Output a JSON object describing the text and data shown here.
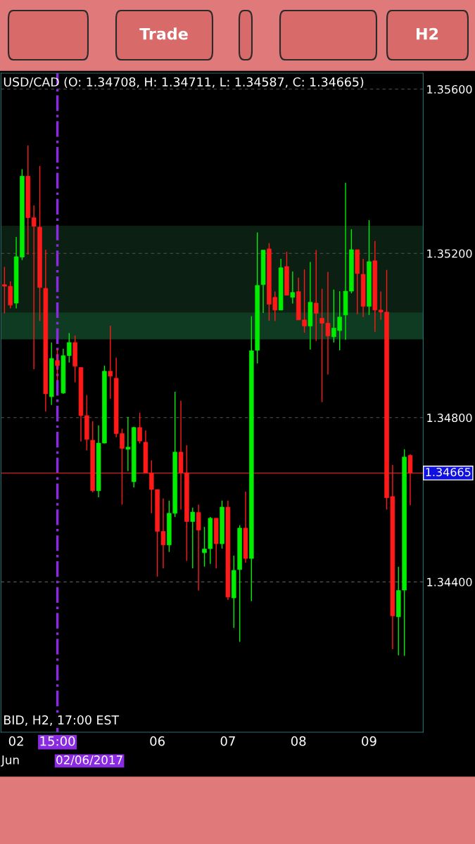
{
  "chart_data": {
    "type": "candlestick",
    "title": "USD/CAD (O: 1.34708, H: 1.34711, L: 1.34587, C: 1.34665)",
    "annotations": [
      "BID, H2, 17:00 EST",
      "Jun",
      "Trade",
      "H2"
    ],
    "categories": [
      null,
      null,
      "02",
      null,
      null,
      null,
      null,
      null,
      null,
      "15:00",
      null,
      null,
      null,
      null,
      null,
      null,
      null,
      null,
      null,
      null,
      null,
      null,
      null,
      null,
      null,
      null,
      "06",
      null,
      null,
      null,
      null,
      null,
      null,
      null,
      null,
      null,
      null,
      null,
      "07",
      null,
      null,
      null,
      null,
      null,
      null,
      null,
      null,
      null,
      null,
      null,
      "08",
      null,
      null,
      null,
      null,
      null,
      null,
      null,
      null,
      null,
      null,
      null,
      "09",
      null,
      null,
      null,
      null,
      null,
      null,
      null
    ],
    "ohlc": [
      [
        1.35124,
        1.35167,
        1.35054,
        1.3512
      ],
      [
        1.3512,
        1.35132,
        1.35066,
        1.35074
      ],
      [
        1.35079,
        1.3524,
        1.35066,
        1.35192
      ],
      [
        1.35191,
        1.35405,
        1.35184,
        1.35388
      ],
      [
        1.35388,
        1.35463,
        1.35197,
        1.35287
      ],
      [
        1.35287,
        1.35317,
        1.34918,
        1.35266
      ],
      [
        1.35264,
        1.35413,
        1.35035,
        1.35117
      ],
      [
        1.35115,
        1.35209,
        1.34815,
        1.34858
      ],
      [
        1.34851,
        1.34983,
        1.34831,
        1.34944
      ],
      [
        1.34939,
        1.34968,
        1.34891,
        1.34927
      ],
      [
        1.3486,
        1.34968,
        1.34858,
        1.34951
      ],
      [
        1.34951,
        1.35006,
        1.34934,
        1.34983
      ],
      [
        1.34983,
        1.35,
        1.34886,
        1.34925
      ],
      [
        1.34922,
        1.34922,
        1.34742,
        1.34805
      ],
      [
        1.34805,
        1.34855,
        1.3472,
        1.34747
      ],
      [
        1.34745,
        1.34791,
        1.34618,
        1.34622
      ],
      [
        1.34622,
        1.34781,
        1.34606,
        1.34738
      ],
      [
        1.34738,
        1.34927,
        1.34737,
        1.34913
      ],
      [
        1.34913,
        1.35024,
        1.34846,
        1.34901
      ],
      [
        1.34896,
        1.34946,
        1.34752,
        1.34761
      ],
      [
        1.34761,
        1.34773,
        1.34588,
        1.34725
      ],
      [
        1.34723,
        1.34802,
        1.3467,
        1.34728
      ],
      [
        1.34644,
        1.34778,
        1.3463,
        1.34776
      ],
      [
        1.34776,
        1.34812,
        1.34737,
        1.34743
      ],
      [
        1.3474,
        1.34769,
        1.34665,
        1.34665
      ],
      [
        1.34665,
        1.34696,
        1.34567,
        1.34625
      ],
      [
        1.34625,
        1.34625,
        1.34413,
        1.34523
      ],
      [
        1.34523,
        1.34603,
        1.34433,
        1.3449
      ],
      [
        1.3449,
        1.34598,
        1.34473,
        1.34567
      ],
      [
        1.34567,
        1.34863,
        1.34558,
        1.34716
      ],
      [
        1.34716,
        1.34841,
        1.34576,
        1.34666
      ],
      [
        1.34666,
        1.34733,
        1.34451,
        1.34547
      ],
      [
        1.34547,
        1.34581,
        1.34433,
        1.3457
      ],
      [
        1.34569,
        1.34588,
        1.34379,
        1.34526
      ],
      [
        1.34471,
        1.34534,
        1.34437,
        1.3448
      ],
      [
        1.34481,
        1.34558,
        1.34444,
        1.34555
      ],
      [
        1.34555,
        1.34555,
        1.34433,
        1.34493
      ],
      [
        1.34493,
        1.34598,
        1.34481,
        1.34582
      ],
      [
        1.34582,
        1.34598,
        1.34356,
        1.34363
      ],
      [
        1.34361,
        1.34464,
        1.34288,
        1.34428
      ],
      [
        1.3443,
        1.34538,
        1.34254,
        1.34531
      ],
      [
        1.34531,
        1.3462,
        1.34447,
        1.34457
      ],
      [
        1.34457,
        1.35047,
        1.34353,
        1.34963
      ],
      [
        1.34964,
        1.35251,
        1.34932,
        1.35122
      ],
      [
        1.35124,
        1.35208,
        1.35055,
        1.35208
      ],
      [
        1.35211,
        1.35225,
        1.35036,
        1.35076
      ],
      [
        1.35093,
        1.35107,
        1.35035,
        1.35062
      ],
      [
        1.35062,
        1.35187,
        1.35062,
        1.35165
      ],
      [
        1.35168,
        1.35204,
        1.35098,
        1.35098
      ],
      [
        1.35093,
        1.35156,
        1.35078,
        1.35105
      ],
      [
        1.35107,
        1.35141,
        1.35038,
        1.35038
      ],
      [
        1.35038,
        1.35161,
        1.35007,
        1.35023
      ],
      [
        1.35023,
        1.35179,
        1.34966,
        1.35081
      ],
      [
        1.35079,
        1.35208,
        1.34987,
        1.35054
      ],
      [
        1.35042,
        1.35114,
        1.34838,
        1.3503
      ],
      [
        1.3503,
        1.35155,
        1.34905,
        1.34999
      ],
      [
        1.34997,
        1.35112,
        1.34983,
        1.35018
      ],
      [
        1.35012,
        1.35108,
        1.34964,
        1.35045
      ],
      [
        1.3505,
        1.35372,
        1.3499,
        1.35108
      ],
      [
        1.35108,
        1.35259,
        1.35103,
        1.35209
      ],
      [
        1.35209,
        1.35209,
        1.35052,
        1.35151
      ],
      [
        1.35149,
        1.35187,
        1.35045,
        1.35071
      ],
      [
        1.35071,
        1.35281,
        1.3505,
        1.3518
      ],
      [
        1.35182,
        1.3523,
        1.35009,
        1.35062
      ],
      [
        1.35062,
        1.35107,
        1.35038,
        1.35057
      ],
      [
        1.35057,
        1.3516,
        1.34576,
        1.34605
      ],
      [
        1.34608,
        1.34685,
        1.34236,
        1.34317
      ],
      [
        1.34315,
        1.34437,
        1.34221,
        1.34379
      ],
      [
        1.3438,
        1.34723,
        1.3422,
        1.34704
      ],
      [
        1.34708,
        1.34711,
        1.34587,
        1.34665
      ]
    ],
    "colors": [
      "#ff1a1a",
      "#ff1a1a",
      "#00ee00",
      "#00ee00",
      "#ff1a1a",
      "#ff1a1a",
      "#ff1a1a",
      "#ff1a1a",
      "#00ee00",
      "#ff1a1a",
      "#00ee00",
      "#00ee00",
      "#ff1a1a",
      "#ff1a1a",
      "#ff1a1a",
      "#ff1a1a",
      "#00ee00",
      "#00ee00",
      "#ff1a1a",
      "#ff1a1a",
      "#ff1a1a",
      "#00ee00",
      "#00ee00",
      "#ff1a1a",
      "#ff1a1a",
      "#ff1a1a",
      "#ff1a1a",
      "#ff1a1a",
      "#00ee00",
      "#00ee00",
      "#ff1a1a",
      "#ff1a1a",
      "#00ee00",
      "#ff1a1a",
      "#00ee00",
      "#00ee00",
      "#ff1a1a",
      "#00ee00",
      "#ff1a1a",
      "#00ee00",
      "#00ee00",
      "#ff1a1a",
      "#00ee00",
      "#00ee00",
      "#00ee00",
      "#ff1a1a",
      "#ff1a1a",
      "#00ee00",
      "#ff1a1a",
      "#00ee00",
      "#ff1a1a",
      "#ff1a1a",
      "#00ee00",
      "#ff1a1a",
      "#ff1a1a",
      "#ff1a1a",
      "#00ee00",
      "#00ee00",
      "#00ee00",
      "#00ee00",
      "#ff1a1a",
      "#ff1a1a",
      "#00ee00",
      "#ff1a1a",
      "#ff1a1a",
      "#ff1a1a",
      "#ff1a1a",
      "#00ee00",
      "#00ee00",
      "#ff1a1a"
    ],
    "ylim": [
      1.34034,
      1.35639
    ],
    "yticks": [
      {
        "value": 1.356,
        "label": "1.35600"
      },
      {
        "value": 1.352,
        "label": "1.35200"
      },
      {
        "value": 1.348,
        "label": "1.34800"
      },
      {
        "value": 1.344,
        "label": "1.34400"
      }
    ],
    "grid": "y",
    "ref_lines": [
      {
        "axis": "y",
        "value": 1.34665,
        "label": "1.34665",
        "color": "#cc2222",
        "line_style": "solid"
      },
      {
        "axis": "x",
        "value": "15:00",
        "label": "02/06/2017",
        "color": "#8a2be2",
        "line_style": "dashdot"
      }
    ],
    "bands": [
      {
        "axis": "y",
        "from": 1.35055,
        "to": 1.35266,
        "color": "#0b1f12"
      },
      {
        "axis": "y",
        "from": 1.34992,
        "to": 1.35055,
        "color": "#0f3b22"
      }
    ]
  }
}
